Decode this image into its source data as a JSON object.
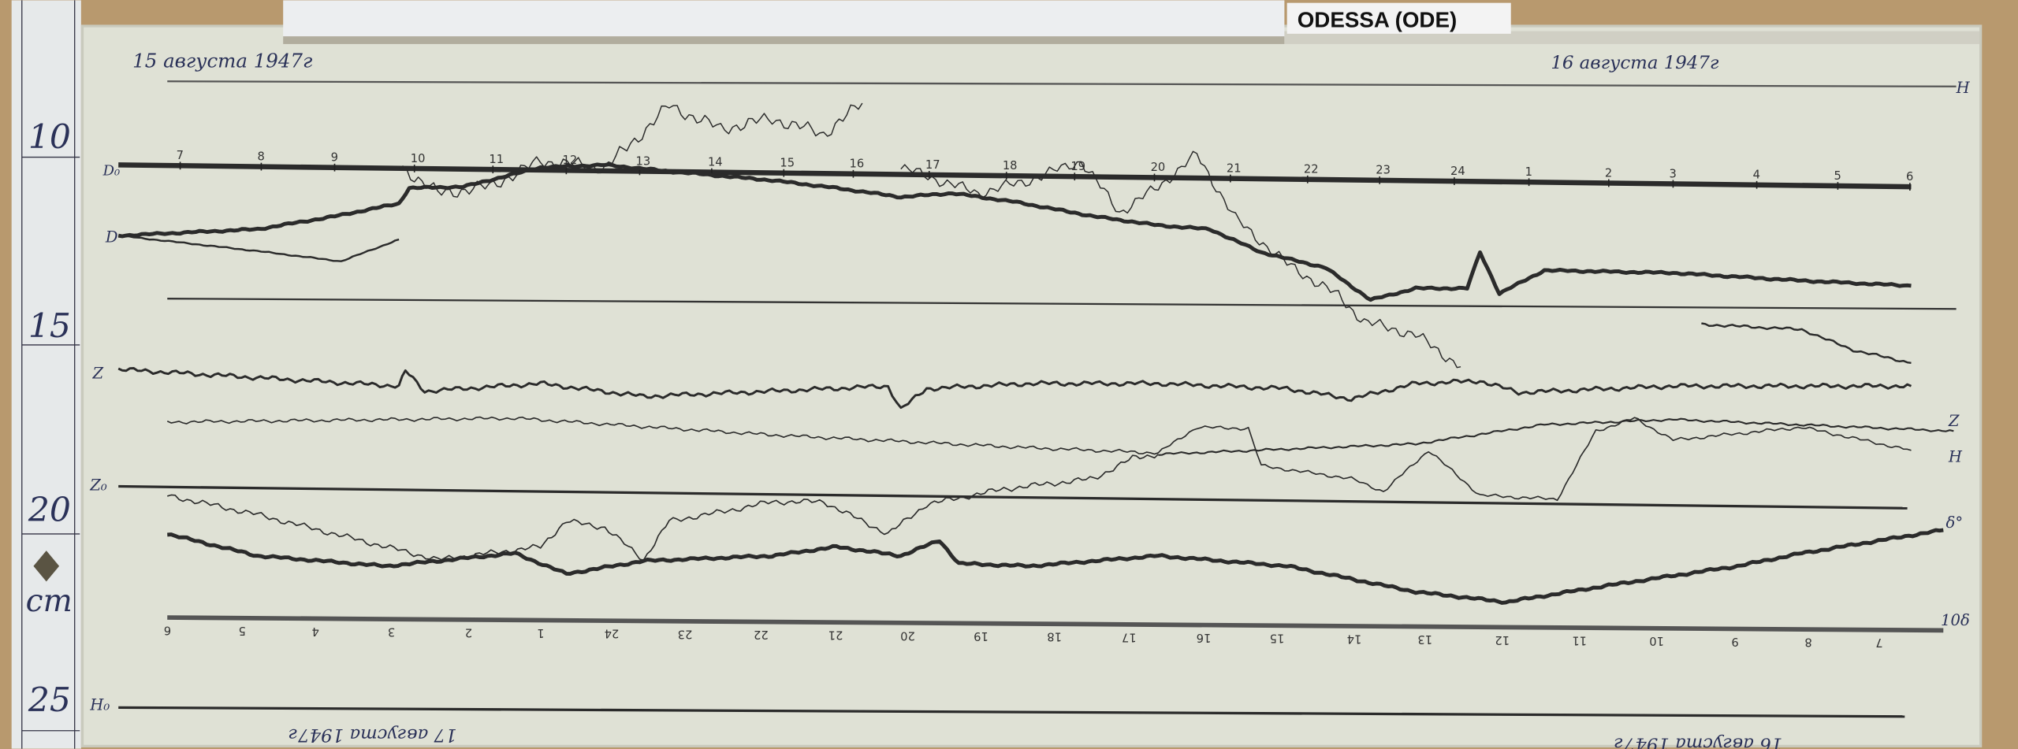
{
  "station_label": "ODESSA (ODE)",
  "dates": {
    "top_left": "15 августа 1947г",
    "top_right": "16 августа 1947г",
    "bottom_left": "17 августа 1947г",
    "bottom_right": "16 августа 1947г"
  },
  "ruler": {
    "marks": [
      "10",
      "15",
      "20",
      "25"
    ],
    "unit": "cm"
  },
  "hours_top": [
    "7",
    "8",
    "9",
    "10",
    "11",
    "12",
    "13",
    "14",
    "15",
    "16",
    "17",
    "18",
    "19",
    "20",
    "21",
    "22",
    "23",
    "24",
    "1",
    "2",
    "3",
    "4",
    "5",
    "6"
  ],
  "hours_bottom": [
    "6",
    "5",
    "4",
    "3",
    "2",
    "1",
    "24",
    "23",
    "22",
    "21",
    "20",
    "19",
    "18",
    "17",
    "16",
    "15",
    "14",
    "13",
    "12",
    "11",
    "10",
    "9",
    "8",
    "7"
  ],
  "trace_labels": {
    "d0": "D₀",
    "d": "D",
    "z": "Z",
    "z0": "Z₀",
    "h0": "H₀",
    "h_top_right": "H",
    "z_right": "Z",
    "h_right": "H",
    "d_right": "δ°",
    "scale_right": "10δ"
  },
  "colors": {
    "paper": "#dfe1d5",
    "ink": "#2b2b2b",
    "handwriting": "#2a3158",
    "wood": "#b8996e"
  }
}
